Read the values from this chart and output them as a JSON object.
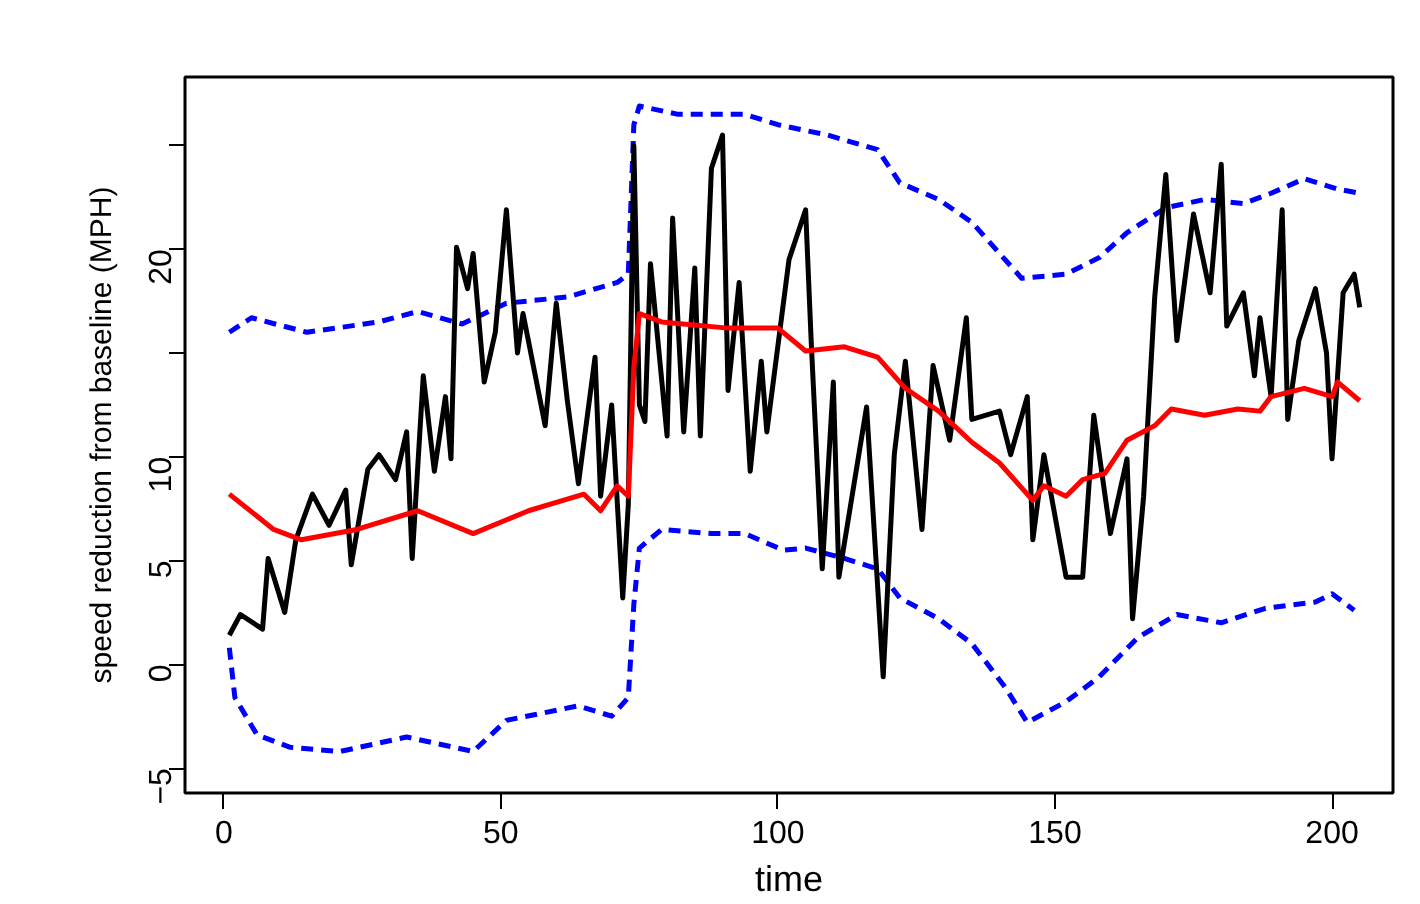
{
  "chart_data": {
    "type": "line",
    "xlabel": "time",
    "ylabel": "speed reduction from baseline (MPH)",
    "xlim": [
      -7,
      211
    ],
    "ylim": [
      -6.2,
      28.3
    ],
    "xticks": [
      0,
      50,
      100,
      150,
      200
    ],
    "yticks": [
      -5,
      0,
      5,
      10,
      {
        "value": 15,
        "label": null
      },
      20,
      {
        "value": 25,
        "label": null
      }
    ],
    "grid": false,
    "marker": "none",
    "line_style": "solid",
    "series": [
      {
        "color": "#0000ff",
        "line_style": "dashed",
        "x": [
          1,
          5,
          15,
          28,
          35,
          43,
          51,
          62,
          71,
          73,
          74,
          75,
          82,
          94,
          100,
          109,
          118,
          122,
          129,
          135,
          140,
          144,
          152,
          158,
          163,
          170,
          177,
          184,
          189,
          195,
          201,
          205
        ],
        "values": [
          16.0,
          16.7,
          16.0,
          16.5,
          17.0,
          16.4,
          17.4,
          17.7,
          18.4,
          18.8,
          26.0,
          26.9,
          26.5,
          26.5,
          26.0,
          25.5,
          24.8,
          23.2,
          22.4,
          21.3,
          19.8,
          18.6,
          18.8,
          19.6,
          20.8,
          22.0,
          22.4,
          22.2,
          22.7,
          23.4,
          22.9,
          22.7
        ]
      },
      {
        "color": "#0000ff",
        "line_style": "dashed",
        "x": [
          1,
          2,
          6,
          12,
          21,
          33,
          45,
          51,
          64,
          70,
          73,
          74,
          75,
          79,
          88,
          94,
          101,
          105,
          112,
          118,
          122,
          129,
          135,
          141,
          145,
          152,
          158,
          165,
          172,
          180,
          188,
          197,
          200,
          204
        ],
        "values": [
          0.8,
          -1.6,
          -3.4,
          -4.0,
          -4.2,
          -3.5,
          -4.2,
          -2.7,
          -2.0,
          -2.5,
          -1.6,
          2.9,
          5.6,
          6.5,
          6.3,
          6.3,
          5.5,
          5.6,
          5.1,
          4.6,
          3.2,
          2.2,
          1.0,
          -1.1,
          -2.8,
          -1.8,
          -0.6,
          1.3,
          2.4,
          2.0,
          2.7,
          3.0,
          3.4,
          2.6
        ]
      },
      {
        "color": "#000000",
        "x": [
          1,
          3,
          7,
          8,
          11,
          13,
          16,
          19,
          22,
          23,
          26,
          28,
          31,
          33,
          34,
          36,
          38,
          40,
          41,
          42,
          44,
          45,
          47,
          49,
          51,
          53,
          54,
          58,
          60,
          62,
          64,
          67,
          68,
          70,
          72,
          73,
          74,
          75,
          76,
          77,
          80,
          81,
          83,
          85,
          86,
          88,
          90,
          91,
          93,
          95,
          97,
          98,
          102,
          105,
          106,
          108,
          110,
          111,
          116,
          119,
          121,
          123,
          126,
          128,
          131,
          134,
          135,
          140,
          142,
          145,
          146,
          148,
          152,
          155,
          157,
          160,
          163,
          164,
          166,
          168,
          170,
          172,
          175,
          178,
          180,
          181,
          184,
          186,
          187,
          189,
          191,
          192,
          194,
          197,
          199,
          200,
          202,
          204,
          205
        ],
        "values": [
          1.4,
          2.4,
          1.7,
          5.1,
          2.5,
          6.0,
          8.2,
          6.7,
          8.4,
          4.8,
          9.4,
          10.1,
          8.9,
          11.2,
          5.1,
          13.9,
          9.3,
          12.9,
          9.9,
          20.1,
          18.1,
          19.8,
          13.6,
          16.0,
          21.9,
          15.0,
          16.9,
          11.5,
          17.4,
          12.7,
          8.7,
          14.8,
          8.1,
          12.5,
          3.2,
          7.7,
          25.0,
          12.5,
          11.7,
          19.3,
          11.0,
          21.5,
          11.2,
          19.1,
          11.0,
          23.9,
          25.5,
          13.2,
          18.4,
          9.3,
          14.6,
          11.2,
          19.5,
          21.9,
          15.6,
          4.6,
          13.6,
          4.2,
          12.4,
          -0.6,
          10.1,
          14.6,
          6.5,
          14.4,
          10.8,
          16.7,
          11.8,
          12.2,
          10.1,
          12.9,
          6.0,
          10.1,
          4.2,
          4.2,
          12.0,
          6.3,
          9.9,
          2.2,
          8.1,
          17.7,
          23.6,
          15.6,
          21.7,
          17.9,
          24.1,
          16.3,
          17.9,
          13.9,
          16.7,
          12.9,
          21.9,
          11.8,
          15.6,
          18.1,
          15.0,
          9.9,
          17.9,
          18.8,
          17.2
        ]
      },
      {
        "color": "#ff0000",
        "x": [
          1,
          9,
          14,
          24,
          35,
          45,
          55,
          65,
          68,
          71,
          73,
          74,
          75,
          79,
          91,
          100,
          105,
          112,
          118,
          123,
          129,
          135,
          140,
          146,
          148,
          152,
          155,
          159,
          163,
          168,
          171,
          177,
          183,
          187,
          189,
          195,
          200,
          201,
          205
        ],
        "values": [
          8.2,
          6.5,
          6.0,
          6.5,
          7.4,
          6.3,
          7.4,
          8.2,
          7.4,
          8.6,
          8.1,
          14.3,
          16.9,
          16.5,
          16.2,
          16.2,
          15.1,
          15.3,
          14.8,
          13.3,
          12.2,
          10.7,
          9.7,
          7.9,
          8.6,
          8.1,
          8.9,
          9.2,
          10.8,
          11.5,
          12.3,
          12.0,
          12.3,
          12.2,
          12.9,
          13.3,
          12.9,
          13.6,
          12.7
        ]
      }
    ]
  }
}
